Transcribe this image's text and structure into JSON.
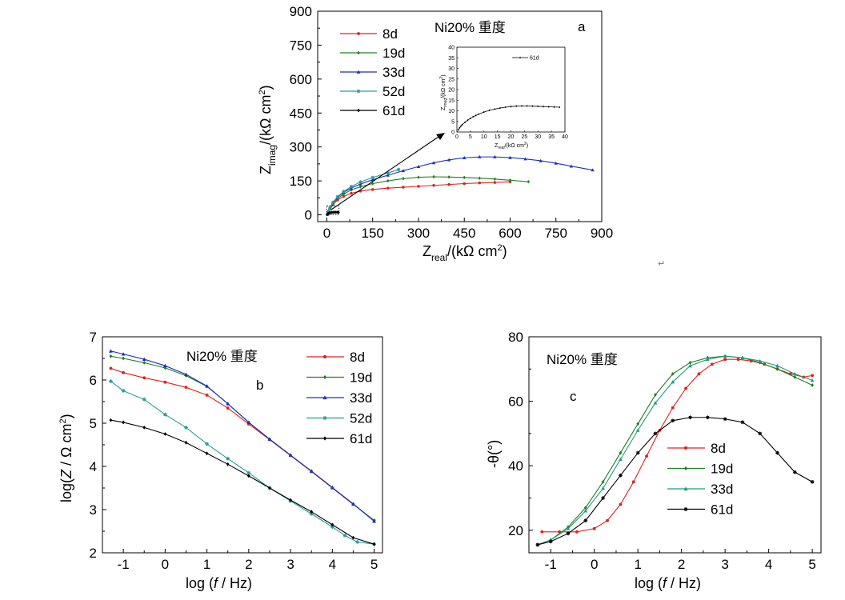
{
  "chart_data": [
    {
      "id": "a",
      "type": "line",
      "panel_label": "a",
      "annotation": "Ni20% 重度",
      "xlabel_main": "Z",
      "xlabel_sub": "real",
      "xlabel_unit": "/(kΩ cm",
      "xlabel_sup": "2",
      "xlabel_close": ")",
      "ylabel_main": "Z",
      "ylabel_sub": "imag",
      "ylabel_unit": "/(kΩ cm",
      "ylabel_sup": "2",
      "ylabel_close": ")",
      "xlim": [
        -30,
        900
      ],
      "ylim": [
        -30,
        900
      ],
      "xticks": [
        "0",
        "150",
        "300",
        "450",
        "600",
        "750",
        "900"
      ],
      "yticks": [
        "0",
        "150",
        "300",
        "450",
        "600",
        "750",
        "900"
      ],
      "series": [
        {
          "name": "8d",
          "color": "#e02020",
          "marker": "dot",
          "x": [
            2,
            5,
            10,
            20,
            35,
            55,
            80,
            110,
            150,
            200,
            250,
            300,
            350,
            400,
            450,
            500,
            550,
            600
          ],
          "y": [
            2,
            10,
            25,
            45,
            65,
            82,
            95,
            105,
            112,
            118,
            122,
            126,
            130,
            134,
            138,
            141,
            143,
            146
          ]
        },
        {
          "name": "19d",
          "color": "#208020",
          "marker": "diamond",
          "x": [
            2,
            5,
            10,
            20,
            35,
            55,
            80,
            110,
            150,
            200,
            250,
            300,
            350,
            400,
            450,
            500,
            550,
            600,
            660
          ],
          "y": [
            2,
            12,
            28,
            50,
            72,
            92,
            110,
            124,
            138,
            150,
            160,
            166,
            168,
            167,
            165,
            162,
            158,
            153,
            146
          ]
        },
        {
          "name": "33d",
          "color": "#1f2fc0",
          "marker": "triangle",
          "x": [
            2,
            5,
            10,
            20,
            35,
            55,
            80,
            110,
            150,
            200,
            250,
            300,
            350,
            400,
            450,
            500,
            550,
            600,
            650,
            700,
            750,
            800,
            870
          ],
          "y": [
            2,
            15,
            30,
            55,
            78,
            100,
            118,
            136,
            155,
            175,
            195,
            213,
            230,
            243,
            252,
            256,
            256,
            253,
            247,
            239,
            228,
            215,
            198
          ]
        },
        {
          "name": "52d",
          "color": "#2a9a9a",
          "marker": "star",
          "x": [
            2,
            5,
            10,
            20,
            35,
            55,
            80,
            110,
            150,
            200,
            235
          ],
          "y": [
            2,
            14,
            30,
            55,
            80,
            103,
            125,
            145,
            165,
            185,
            200
          ]
        },
        {
          "name": "61d",
          "color": "#000000",
          "marker": "diamond",
          "x": [
            1,
            3,
            5,
            8,
            12,
            16,
            20,
            25,
            30,
            35,
            38
          ],
          "y": [
            2,
            4,
            6,
            8,
            9.5,
            10.5,
            11,
            11.5,
            11.5,
            11.3,
            11
          ]
        }
      ],
      "inset": {
        "legend": "61d",
        "xlabel_main": "Z",
        "xlabel_sub": "real",
        "xlabel_unit": "/(kΩ cm",
        "xlabel_sup": "2",
        "xlabel_close": ")",
        "ylabel_main": "Z",
        "ylabel_sub": "imag",
        "ylabel_unit": "/(kΩ cm",
        "ylabel_sup": "2",
        "ylabel_close": ")",
        "xlim": [
          0,
          40
        ],
        "ylim": [
          0,
          40
        ],
        "xticks": [
          "0",
          "5",
          "10",
          "15",
          "20",
          "25",
          "30",
          "35",
          "40"
        ],
        "yticks": [
          "0",
          "5",
          "10",
          "15",
          "20",
          "25",
          "30",
          "35",
          "40"
        ],
        "x": [
          0.5,
          1,
          1.5,
          2,
          3,
          4,
          5,
          6,
          7,
          8,
          10,
          12,
          14,
          16,
          18,
          20,
          22,
          24,
          26,
          28,
          30,
          32,
          34,
          36,
          38
        ],
        "y": [
          1,
          2,
          2.8,
          3.5,
          4.6,
          5.6,
          6.4,
          7.2,
          7.8,
          8.4,
          9.4,
          10.2,
          10.8,
          11.3,
          11.7,
          12,
          12.2,
          12.3,
          12.3,
          12.2,
          12.1,
          12,
          11.9,
          11.8,
          11.7
        ]
      }
    },
    {
      "id": "b",
      "type": "line",
      "panel_label": "b",
      "annotation": "Ni20%  重度",
      "xlabel_pre": "log (",
      "xlabel_ital": "f",
      "xlabel_post": " / Hz)",
      "ylabel_pre": "log(",
      "ylabel_ital": "Z",
      "ylabel_post": " / Ω cm",
      "ylabel_sup": "2",
      "ylabel_close": ")",
      "xlim": [
        -1.5,
        5.2
      ],
      "ylim": [
        2,
        7
      ],
      "xticks": [
        "-1",
        "0",
        "1",
        "2",
        "3",
        "4",
        "5"
      ],
      "yticks": [
        "2",
        "3",
        "4",
        "5",
        "6",
        "7"
      ],
      "series": [
        {
          "name": "8d",
          "color": "#e02020",
          "marker": "dot",
          "x": [
            -1.3,
            -1,
            -0.5,
            0,
            0.5,
            1,
            1.5,
            2,
            2.5,
            3,
            3.5,
            4,
            4.5,
            5
          ],
          "y": [
            6.27,
            6.17,
            6.05,
            5.95,
            5.83,
            5.65,
            5.35,
            4.98,
            4.62,
            4.25,
            3.88,
            3.5,
            3.12,
            2.75
          ]
        },
        {
          "name": "19d",
          "color": "#208020",
          "marker": "diamond",
          "x": [
            -1.3,
            -1,
            -0.5,
            0,
            0.5,
            1,
            1.5,
            2,
            2.5,
            3,
            3.5,
            4,
            4.5,
            5
          ],
          "y": [
            6.55,
            6.5,
            6.4,
            6.28,
            6.1,
            5.85,
            5.45,
            5.02,
            4.63,
            4.26,
            3.89,
            3.51,
            3.13,
            2.75
          ]
        },
        {
          "name": "33d",
          "color": "#1f2fc0",
          "marker": "triangle",
          "x": [
            -1.3,
            -1,
            -0.5,
            0,
            0.5,
            1,
            1.5,
            2,
            2.5,
            3,
            3.5,
            4,
            4.5,
            5
          ],
          "y": [
            6.67,
            6.6,
            6.48,
            6.33,
            6.13,
            5.86,
            5.45,
            5.02,
            4.63,
            4.26,
            3.89,
            3.51,
            3.13,
            2.73
          ]
        },
        {
          "name": "52d",
          "color": "#2a9a9a",
          "marker": "star",
          "x": [
            -1.3,
            -1,
            -0.5,
            0,
            0.5,
            1,
            1.5,
            2,
            2.5,
            3,
            3.5,
            4,
            4.3,
            4.6,
            5
          ],
          "y": [
            5.97,
            5.75,
            5.55,
            5.2,
            4.9,
            4.52,
            4.18,
            3.85,
            3.5,
            3.2,
            2.9,
            2.6,
            2.4,
            2.25,
            2.2
          ]
        },
        {
          "name": "61d",
          "color": "#000000",
          "marker": "diamond",
          "x": [
            -1.3,
            -1,
            -0.5,
            0,
            0.5,
            1,
            1.5,
            2,
            2.5,
            3,
            3.5,
            4,
            4.5,
            5
          ],
          "y": [
            5.07,
            5.02,
            4.9,
            4.75,
            4.55,
            4.3,
            4.05,
            3.78,
            3.5,
            3.22,
            2.95,
            2.65,
            2.35,
            2.2
          ]
        }
      ]
    },
    {
      "id": "c",
      "type": "line",
      "panel_label": "c",
      "annotation": "Ni20%  重度",
      "xlabel_pre": "log (",
      "xlabel_ital": "f",
      "xlabel_post": " / Hz)",
      "ylabel": "-θ(°)",
      "xlim": [
        -1.5,
        5.2
      ],
      "ylim": [
        13,
        80
      ],
      "xticks": [
        "-1",
        "0",
        "1",
        "2",
        "3",
        "4",
        "5"
      ],
      "yticks": [
        "20",
        "40",
        "60",
        "80"
      ],
      "series": [
        {
          "name": "8d",
          "color": "#e02020",
          "marker": "dot",
          "x": [
            -1.2,
            -0.8,
            -0.4,
            0,
            0.3,
            0.6,
            0.9,
            1.2,
            1.5,
            1.8,
            2.1,
            2.4,
            2.7,
            3,
            3.3,
            3.6,
            3.9,
            4.2,
            4.5,
            4.8,
            5
          ],
          "y": [
            19.5,
            19.5,
            19.5,
            20.5,
            23,
            28,
            35,
            43,
            51,
            58,
            64,
            68.5,
            71.5,
            73,
            73,
            72.5,
            71.5,
            70,
            68.5,
            67.5,
            68
          ]
        },
        {
          "name": "19d",
          "color": "#208020",
          "marker": "diamond",
          "x": [
            -1.3,
            -1,
            -0.6,
            -0.2,
            0.2,
            0.6,
            1,
            1.4,
            1.8,
            2.2,
            2.6,
            3,
            3.4,
            3.8,
            4.2,
            4.6,
            5
          ],
          "y": [
            15.5,
            17,
            21,
            27,
            35,
            44,
            53,
            62,
            68.5,
            72,
            73.5,
            74,
            73.5,
            72,
            70,
            67.5,
            65
          ]
        },
        {
          "name": "33d",
          "color": "#1f9a80",
          "marker": "triangle",
          "x": [
            -1.3,
            -1,
            -0.6,
            -0.2,
            0.2,
            0.6,
            1,
            1.4,
            1.8,
            2.2,
            2.6,
            3,
            3.4,
            3.8,
            4.2,
            4.6,
            5
          ],
          "y": [
            15.5,
            17,
            20.5,
            26,
            33,
            42,
            51,
            59.5,
            66,
            71,
            73,
            74,
            73.5,
            72.5,
            71,
            68.5,
            66.5
          ]
        },
        {
          "name": "61d",
          "color": "#000000",
          "marker": "star",
          "x": [
            -1.3,
            -1,
            -0.6,
            -0.2,
            0.2,
            0.6,
            1,
            1.4,
            1.8,
            2.2,
            2.6,
            3,
            3.4,
            3.8,
            4.2,
            4.6,
            5
          ],
          "y": [
            15.5,
            16.5,
            19,
            23,
            30,
            37,
            44,
            50,
            54,
            55,
            55,
            54.5,
            53.5,
            50,
            44,
            38,
            35
          ]
        }
      ]
    }
  ],
  "stray_mark": "↵"
}
